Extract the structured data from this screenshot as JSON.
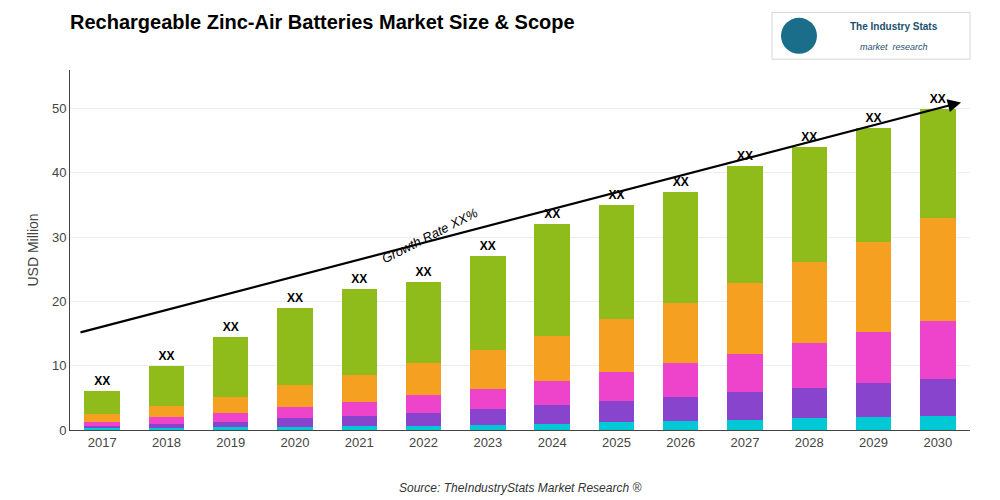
{
  "chart_data": {
    "type": "bar",
    "stacked": true,
    "title": "Rechargeable Zinc-Air Batteries Market Size & Scope",
    "ylabel": "USD Million",
    "categories": [
      "2017",
      "2018",
      "2019",
      "2020",
      "2021",
      "2022",
      "2023",
      "2024",
      "2025",
      "2026",
      "2027",
      "2028",
      "2029",
      "2030"
    ],
    "series": [
      {
        "color": "#00c8d4",
        "values": [
          0.25,
          0.3,
          0.4,
          0.5,
          0.6,
          0.7,
          0.8,
          1.0,
          1.2,
          1.4,
          1.6,
          1.8,
          2.0,
          2.2
        ]
      },
      {
        "color": "#8844cc",
        "values": [
          0.35,
          0.6,
          0.9,
          1.3,
          1.6,
          2.0,
          2.4,
          2.9,
          3.3,
          3.8,
          4.3,
          4.8,
          5.3,
          5.8
        ]
      },
      {
        "color": "#ee44cc",
        "values": [
          0.7,
          1.1,
          1.4,
          1.8,
          2.2,
          2.7,
          3.2,
          3.8,
          4.5,
          5.2,
          6.0,
          7.0,
          8.0,
          9.0
        ]
      },
      {
        "color": "#f5a020",
        "values": [
          1.2,
          1.8,
          2.5,
          3.4,
          4.2,
          5.0,
          6.0,
          7.0,
          8.2,
          9.4,
          11.0,
          12.5,
          14.0,
          16.0
        ]
      },
      {
        "color": "#8fbc1a",
        "values": [
          3.5,
          6.2,
          9.3,
          12.0,
          13.4,
          12.6,
          14.6,
          17.3,
          17.8,
          17.2,
          18.1,
          17.9,
          17.7,
          17.0
        ],
        "value_labels": [
          "XX",
          "XX",
          "XX",
          "XX",
          "XX",
          "XX",
          "XX",
          "XX",
          "XX",
          "XX",
          "XX",
          "XX",
          "XX",
          "XX"
        ]
      }
    ],
    "ylim": [
      0,
      56
    ],
    "yticks": [
      0,
      10,
      20,
      30,
      40,
      50
    ],
    "grid": true,
    "annotations": [
      "Growth Rate XX%",
      "Source: TheIndustryStats Market Research ®",
      "The Industry Stats",
      "market  research"
    ]
  }
}
